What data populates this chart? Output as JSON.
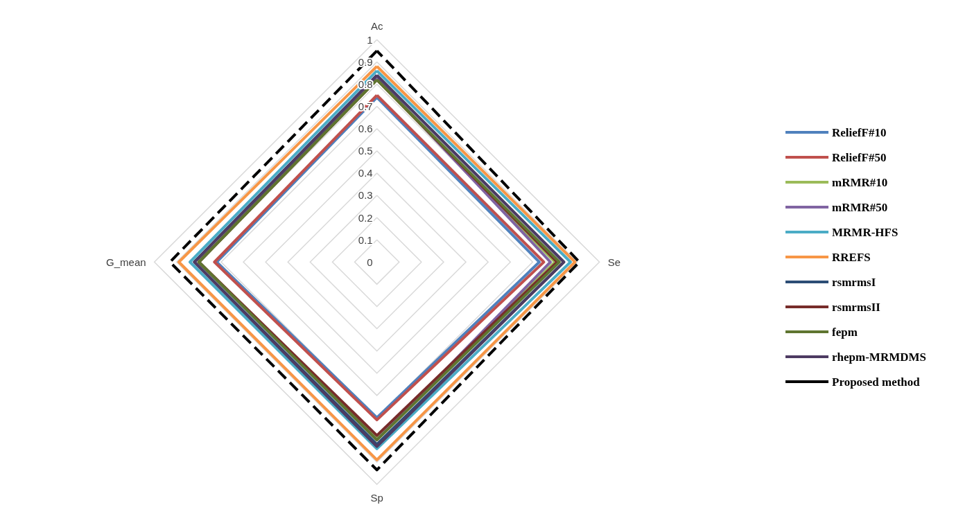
{
  "chart_data": {
    "type": "radar",
    "categories": [
      "Ac",
      "Se",
      "Sp",
      "G_mean"
    ],
    "ylim": [
      0,
      1
    ],
    "yticks": [
      0,
      0.1,
      0.2,
      0.3,
      0.4,
      0.5,
      0.6,
      0.7,
      0.8,
      0.9,
      1
    ],
    "grid": true,
    "legend": "right",
    "marker": "none",
    "line_style": "solid",
    "series": [
      {
        "name": "ReliefF#10",
        "color": "#4f81bd",
        "values": [
          0.74,
          0.73,
          0.7,
          0.72
        ]
      },
      {
        "name": "ReliefF#50",
        "color": "#c0504d",
        "values": [
          0.75,
          0.75,
          0.71,
          0.73
        ]
      },
      {
        "name": "mRMR#10",
        "color": "#9bbb59",
        "values": [
          0.82,
          0.8,
          0.79,
          0.8
        ]
      },
      {
        "name": "mRMR#50",
        "color": "#8064a2",
        "values": [
          0.83,
          0.78,
          0.8,
          0.8
        ]
      },
      {
        "name": "MRMR-HFS",
        "color": "#4bacc6",
        "values": [
          0.86,
          0.87,
          0.84,
          0.84
        ]
      },
      {
        "name": "RREFS",
        "color": "#f79646",
        "values": [
          0.88,
          0.89,
          0.89,
          0.89
        ]
      },
      {
        "name": "rsmrmsI",
        "color": "#2c4d75",
        "values": [
          0.84,
          0.84,
          0.82,
          0.82
        ]
      },
      {
        "name": "rsmrmsII",
        "color": "#772c2a",
        "values": [
          0.82,
          0.81,
          0.78,
          0.8
        ]
      },
      {
        "name": "fepm",
        "color": "#5f7530",
        "values": [
          0.82,
          0.82,
          0.8,
          0.8
        ]
      },
      {
        "name": "rhepm-MRMDMS",
        "color": "#4d3b62",
        "values": [
          0.84,
          0.84,
          0.83,
          0.82
        ]
      },
      {
        "name": "Proposed method",
        "color": "#000000",
        "line_style": "dashed",
        "values": [
          0.95,
          0.91,
          0.935,
          0.93
        ]
      }
    ]
  }
}
